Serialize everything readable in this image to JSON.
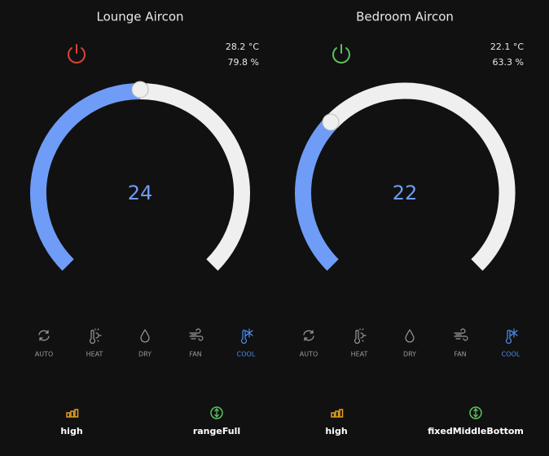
{
  "cards": [
    {
      "title": "Lounge Aircon",
      "temperature": "28.2 °C",
      "humidity": "79.8 %",
      "setpoint": 24,
      "modes": [
        "AUTO",
        "HEAT",
        "DRY",
        "FAN",
        "COOL"
      ],
      "fan_mode": "high",
      "swing_mode": "rangeFull"
    },
    {
      "title": "Bedroom Aircon",
      "temperature": "22.1 °C",
      "humidity": "63.3 %",
      "setpoint": 22,
      "modes": [
        "AUTO",
        "HEAT",
        "DRY",
        "FAN",
        "COOL"
      ],
      "fan_mode": "high",
      "swing_mode": "fixedMiddleBottom"
    }
  ]
}
